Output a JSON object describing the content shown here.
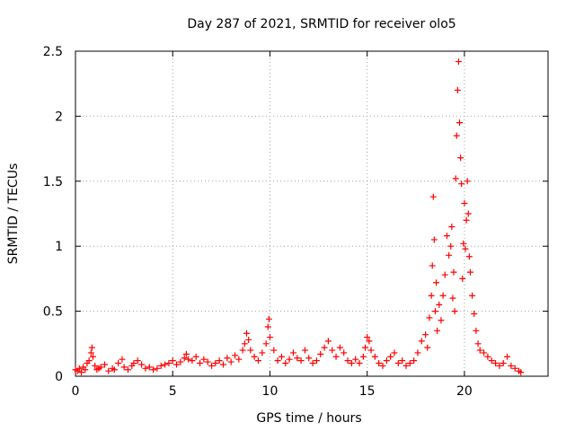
{
  "chart_data": {
    "type": "scatter",
    "title": "Day 287 of 2021, SRMTID for receiver olo5",
    "xlabel": "GPS time / hours",
    "ylabel": "SRMTID / TECUs",
    "xlim": [
      0,
      24.3
    ],
    "ylim": [
      0,
      2.5
    ],
    "grid": true,
    "marker": "+",
    "color": "#ff0000",
    "x_ticks": [
      {
        "value": 0,
        "label": "0"
      },
      {
        "value": 5,
        "label": "5"
      },
      {
        "value": 10,
        "label": "10"
      },
      {
        "value": 15,
        "label": "15"
      },
      {
        "value": 20,
        "label": "20"
      }
    ],
    "y_ticks": [
      {
        "value": 0,
        "label": "0"
      },
      {
        "value": 0.5,
        "label": "0.5"
      },
      {
        "value": 1,
        "label": "1"
      },
      {
        "value": 1.5,
        "label": "1.5"
      },
      {
        "value": 2,
        "label": "2"
      },
      {
        "value": 2.5,
        "label": "2.5"
      }
    ],
    "series": [
      {
        "name": "SRMTID",
        "x": [
          0.0,
          0.1,
          0.2,
          0.3,
          0.4,
          0.5,
          0.6,
          0.7,
          0.8,
          0.85,
          0.9,
          1.0,
          1.1,
          1.2,
          1.3,
          1.5,
          1.7,
          1.9,
          2.0,
          2.2,
          2.4,
          2.5,
          2.7,
          2.9,
          3.0,
          3.2,
          3.4,
          3.6,
          3.8,
          4.0,
          4.2,
          4.4,
          4.6,
          4.8,
          5.0,
          5.2,
          5.4,
          5.6,
          5.7,
          5.8,
          6.0,
          6.2,
          6.4,
          6.6,
          6.8,
          7.0,
          7.2,
          7.4,
          7.6,
          7.8,
          8.0,
          8.2,
          8.4,
          8.6,
          8.7,
          8.8,
          8.9,
          9.0,
          9.2,
          9.4,
          9.6,
          9.8,
          9.9,
          9.95,
          10.0,
          10.2,
          10.4,
          10.6,
          10.8,
          11.0,
          11.2,
          11.4,
          11.6,
          11.8,
          12.0,
          12.2,
          12.4,
          12.6,
          12.8,
          13.0,
          13.2,
          13.4,
          13.6,
          13.8,
          14.0,
          14.2,
          14.4,
          14.6,
          14.8,
          14.9,
          15.0,
          15.1,
          15.2,
          15.4,
          15.6,
          15.8,
          16.0,
          16.2,
          16.4,
          16.6,
          16.8,
          17.0,
          17.2,
          17.4,
          17.6,
          17.8,
          18.0,
          18.1,
          18.2,
          18.3,
          18.35,
          18.4,
          18.45,
          18.5,
          18.55,
          18.6,
          18.7,
          18.8,
          18.9,
          19.0,
          19.1,
          19.2,
          19.3,
          19.35,
          19.4,
          19.45,
          19.5,
          19.55,
          19.6,
          19.65,
          19.7,
          19.75,
          19.8,
          19.85,
          19.9,
          19.95,
          20.0,
          20.05,
          20.1,
          20.15,
          20.2,
          20.25,
          20.3,
          20.4,
          20.5,
          20.6,
          20.7,
          20.8,
          21.0,
          21.2,
          21.4,
          21.6,
          21.8,
          22.0,
          22.2,
          22.4,
          22.6,
          22.8,
          22.9
        ],
        "y": [
          0.05,
          0.04,
          0.06,
          0.03,
          0.07,
          0.05,
          0.1,
          0.12,
          0.18,
          0.22,
          0.15,
          0.08,
          0.05,
          0.06,
          0.07,
          0.09,
          0.04,
          0.06,
          0.05,
          0.1,
          0.13,
          0.07,
          0.05,
          0.08,
          0.1,
          0.12,
          0.09,
          0.06,
          0.07,
          0.05,
          0.06,
          0.08,
          0.09,
          0.1,
          0.12,
          0.09,
          0.11,
          0.14,
          0.17,
          0.13,
          0.12,
          0.15,
          0.1,
          0.13,
          0.11,
          0.08,
          0.1,
          0.12,
          0.09,
          0.14,
          0.11,
          0.16,
          0.13,
          0.2,
          0.25,
          0.33,
          0.28,
          0.2,
          0.15,
          0.12,
          0.18,
          0.25,
          0.38,
          0.44,
          0.3,
          0.2,
          0.12,
          0.15,
          0.1,
          0.13,
          0.18,
          0.14,
          0.12,
          0.2,
          0.14,
          0.1,
          0.12,
          0.17,
          0.22,
          0.27,
          0.2,
          0.15,
          0.22,
          0.18,
          0.12,
          0.1,
          0.13,
          0.1,
          0.15,
          0.22,
          0.3,
          0.27,
          0.2,
          0.15,
          0.1,
          0.08,
          0.12,
          0.15,
          0.18,
          0.1,
          0.12,
          0.08,
          0.1,
          0.12,
          0.18,
          0.27,
          0.32,
          0.22,
          0.45,
          0.62,
          0.85,
          1.38,
          1.05,
          0.5,
          0.72,
          0.35,
          0.55,
          0.43,
          0.62,
          0.78,
          1.08,
          0.93,
          1.0,
          1.15,
          0.6,
          0.8,
          0.5,
          1.52,
          1.85,
          2.2,
          2.42,
          1.95,
          1.68,
          1.48,
          0.75,
          1.02,
          1.33,
          0.98,
          1.2,
          1.5,
          1.25,
          0.92,
          0.8,
          0.62,
          0.48,
          0.35,
          0.25,
          0.2,
          0.18,
          0.15,
          0.12,
          0.1,
          0.08,
          0.1,
          0.15,
          0.08,
          0.06,
          0.04,
          0.03
        ]
      }
    ]
  }
}
